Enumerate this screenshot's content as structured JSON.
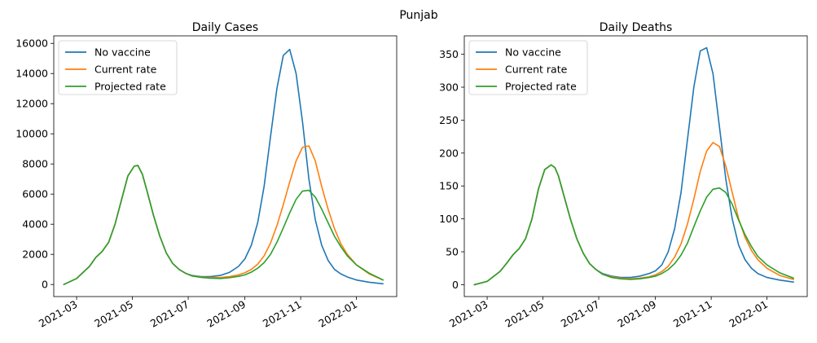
{
  "suptitle": "Punjab",
  "colors": {
    "No vaccine": "#1f77b4",
    "Current rate": "#ff7f0e",
    "Projected rate": "#2ca02c"
  },
  "chart_data": [
    {
      "type": "line",
      "title": "Daily Cases",
      "xlabel": "",
      "ylabel": "",
      "x_range": [
        "2021-02-04",
        "2022-02-14"
      ],
      "ylim": [
        -800,
        16500
      ],
      "yticks": [
        0,
        2000,
        4000,
        6000,
        8000,
        10000,
        12000,
        14000,
        16000
      ],
      "ytick_labels": [
        "0",
        "2000",
        "4000",
        "6000",
        "8000",
        "10000",
        "12000",
        "14000",
        "16000"
      ],
      "xticks": [
        "2021-03-01",
        "2021-05-01",
        "2021-07-01",
        "2021-09-01",
        "2021-11-01",
        "2022-01-01"
      ],
      "xtick_labels": [
        "2021-03",
        "2021-05",
        "2021-07",
        "2021-09",
        "2021-11",
        "2022-01"
      ],
      "grid": false,
      "legend": "top-left",
      "x": [
        "2021-02-15",
        "2021-03-01",
        "2021-03-15",
        "2021-03-22",
        "2021-03-29",
        "2021-04-05",
        "2021-04-12",
        "2021-04-19",
        "2021-04-26",
        "2021-05-03",
        "2021-05-07",
        "2021-05-12",
        "2021-05-17",
        "2021-05-24",
        "2021-05-31",
        "2021-06-07",
        "2021-06-14",
        "2021-06-21",
        "2021-06-28",
        "2021-07-05",
        "2021-07-15",
        "2021-07-25",
        "2021-08-05",
        "2021-08-15",
        "2021-08-25",
        "2021-09-01",
        "2021-09-08",
        "2021-09-15",
        "2021-09-22",
        "2021-09-29",
        "2021-10-06",
        "2021-10-13",
        "2021-10-20",
        "2021-10-27",
        "2021-11-03",
        "2021-11-10",
        "2021-11-17",
        "2021-11-24",
        "2021-12-01",
        "2021-12-08",
        "2021-12-15",
        "2021-12-22",
        "2022-01-01",
        "2022-01-15",
        "2022-01-30"
      ],
      "series": [
        {
          "name": "No vaccine",
          "values": [
            0,
            400,
            1200,
            1800,
            2200,
            2800,
            4000,
            5600,
            7200,
            7850,
            7900,
            7300,
            6200,
            4600,
            3200,
            2100,
            1400,
            1000,
            750,
            600,
            520,
            520,
            600,
            800,
            1200,
            1700,
            2600,
            4100,
            6500,
            9800,
            13000,
            15200,
            15600,
            14000,
            10800,
            7000,
            4300,
            2600,
            1600,
            1000,
            700,
            500,
            300,
            150,
            50
          ]
        },
        {
          "name": "Current rate",
          "values": [
            0,
            400,
            1200,
            1800,
            2200,
            2800,
            4000,
            5600,
            7200,
            7850,
            7900,
            7300,
            6200,
            4600,
            3200,
            2100,
            1400,
            1000,
            750,
            580,
            490,
            460,
            460,
            520,
            640,
            780,
            1000,
            1350,
            1900,
            2750,
            3900,
            5300,
            6800,
            8200,
            9100,
            9200,
            8200,
            6500,
            5000,
            3700,
            2700,
            2000,
            1300,
            700,
            300
          ]
        },
        {
          "name": "Projected rate",
          "values": [
            0,
            400,
            1200,
            1800,
            2200,
            2800,
            4000,
            5600,
            7200,
            7850,
            7900,
            7300,
            6200,
            4600,
            3200,
            2100,
            1400,
            1000,
            750,
            570,
            470,
            420,
            400,
            450,
            540,
            640,
            820,
            1080,
            1450,
            2000,
            2800,
            3750,
            4750,
            5650,
            6200,
            6250,
            5800,
            5000,
            4100,
            3200,
            2500,
            1900,
            1300,
            750,
            300
          ]
        }
      ]
    },
    {
      "type": "line",
      "title": "Daily Deaths",
      "xlabel": "",
      "ylabel": "",
      "x_range": [
        "2021-02-04",
        "2022-02-14"
      ],
      "ylim": [
        -18,
        378
      ],
      "yticks": [
        0,
        50,
        100,
        150,
        200,
        250,
        300,
        350
      ],
      "ytick_labels": [
        "0",
        "50",
        "100",
        "150",
        "200",
        "250",
        "300",
        "350"
      ],
      "xticks": [
        "2021-03-01",
        "2021-05-01",
        "2021-07-01",
        "2021-09-01",
        "2021-11-01",
        "2022-01-01"
      ],
      "xtick_labels": [
        "2021-03",
        "2021-05",
        "2021-07",
        "2021-09",
        "2021-11",
        "2022-01"
      ],
      "grid": false,
      "legend": "top-left",
      "x": [
        "2021-02-15",
        "2021-03-01",
        "2021-03-15",
        "2021-03-22",
        "2021-03-29",
        "2021-04-05",
        "2021-04-12",
        "2021-04-19",
        "2021-04-26",
        "2021-05-03",
        "2021-05-10",
        "2021-05-14",
        "2021-05-18",
        "2021-05-24",
        "2021-05-31",
        "2021-06-07",
        "2021-06-14",
        "2021-06-21",
        "2021-06-28",
        "2021-07-05",
        "2021-07-15",
        "2021-07-25",
        "2021-08-05",
        "2021-08-15",
        "2021-08-25",
        "2021-09-01",
        "2021-09-08",
        "2021-09-15",
        "2021-09-22",
        "2021-09-29",
        "2021-10-06",
        "2021-10-13",
        "2021-10-20",
        "2021-10-27",
        "2021-11-03",
        "2021-11-10",
        "2021-11-17",
        "2021-11-24",
        "2021-12-01",
        "2021-12-08",
        "2021-12-15",
        "2021-12-22",
        "2022-01-01",
        "2022-01-15",
        "2022-01-30"
      ],
      "series": [
        {
          "name": "No vaccine",
          "values": [
            0,
            5,
            20,
            32,
            45,
            55,
            70,
            100,
            145,
            175,
            182,
            178,
            165,
            135,
            100,
            70,
            48,
            32,
            23,
            17,
            13,
            11,
            11,
            13,
            17,
            21,
            30,
            50,
            85,
            140,
            220,
            300,
            355,
            360,
            320,
            240,
            160,
            100,
            60,
            38,
            25,
            17,
            11,
            7,
            4
          ]
        },
        {
          "name": "Current rate",
          "values": [
            0,
            5,
            20,
            32,
            45,
            55,
            70,
            100,
            145,
            175,
            182,
            178,
            165,
            135,
            100,
            70,
            48,
            32,
            23,
            16,
            12,
            10,
            9,
            10,
            12,
            15,
            20,
            28,
            42,
            62,
            92,
            130,
            172,
            203,
            216,
            210,
            180,
            140,
            100,
            72,
            52,
            38,
            25,
            14,
            8
          ]
        },
        {
          "name": "Projected rate",
          "values": [
            0,
            5,
            20,
            32,
            45,
            55,
            70,
            100,
            145,
            175,
            182,
            178,
            165,
            135,
            100,
            70,
            48,
            32,
            23,
            16,
            11,
            9,
            8,
            9,
            11,
            13,
            17,
            23,
            32,
            45,
            63,
            88,
            112,
            133,
            145,
            147,
            140,
            122,
            98,
            76,
            58,
            43,
            30,
            18,
            10
          ]
        }
      ]
    }
  ]
}
